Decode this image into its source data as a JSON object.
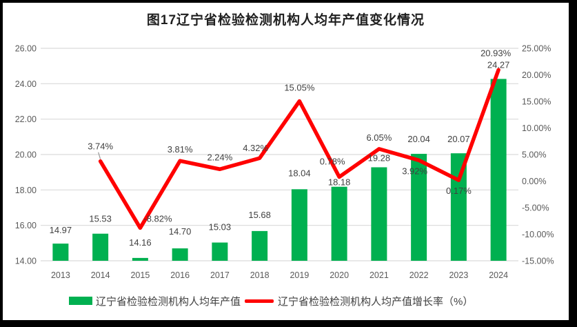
{
  "title": "图17辽宁省检验检测机构人均年产值变化情况",
  "legend": {
    "bar_label": "辽宁省检验检测机构人均年产值",
    "line_label": "辽宁省检验检测机构人均产值增长率（%）"
  },
  "colors": {
    "bar": "#00B050",
    "line": "#FF0000",
    "grid": "#D9D9D9",
    "axis_text": "#595959",
    "label_text": "#404040",
    "title_text": "#1f1f1f",
    "frame": "#000000",
    "leader": "#999999"
  },
  "chart_data": {
    "type": "bar+line",
    "title": "图17辽宁省检验检测机构人均年产值变化情况",
    "categories": [
      "2013",
      "2014",
      "2015",
      "2016",
      "2017",
      "2018",
      "2019",
      "2020",
      "2021",
      "2022",
      "2023",
      "2024"
    ],
    "series": [
      {
        "name": "辽宁省检验检测机构人均年产值",
        "type": "bar",
        "axis": "left",
        "values": [
          14.97,
          15.53,
          14.16,
          14.7,
          15.03,
          15.68,
          18.04,
          18.18,
          19.28,
          20.04,
          20.07,
          24.27
        ],
        "labels": [
          "14.97",
          "15.53",
          "14.16",
          "14.70",
          "15.03",
          "15.68",
          "18.04",
          "18.18",
          "19.28",
          "20.04",
          "20.07",
          "24.27"
        ]
      },
      {
        "name": "辽宁省检验检测机构人均产值增长率（%）",
        "type": "line",
        "axis": "right",
        "values": [
          null,
          3.74,
          -8.82,
          3.81,
          2.24,
          4.32,
          15.05,
          0.78,
          6.05,
          3.92,
          0.17,
          20.93
        ],
        "labels": [
          "",
          "3.74%",
          "-8.82%",
          "3.81%",
          "2.24%",
          "4.32%",
          "15.05%",
          "0.78%",
          "6.05%",
          "3.92%",
          "0.17%",
          "20.93%"
        ]
      }
    ],
    "left_axis": {
      "min": 14,
      "max": 26,
      "step": 2,
      "tick_labels": [
        "26.00",
        "24.00",
        "22.00",
        "20.00",
        "18.00",
        "16.00",
        "14.00"
      ]
    },
    "right_axis": {
      "min": -15,
      "max": 25,
      "step": 5,
      "tick_labels": [
        "25.00%",
        "20.00%",
        "15.00%",
        "10.00%",
        "5.00%",
        "0.00%",
        "-5.00%",
        "-10.00%",
        "-15.00%"
      ]
    },
    "grid": true,
    "legend_position": "bottom"
  }
}
